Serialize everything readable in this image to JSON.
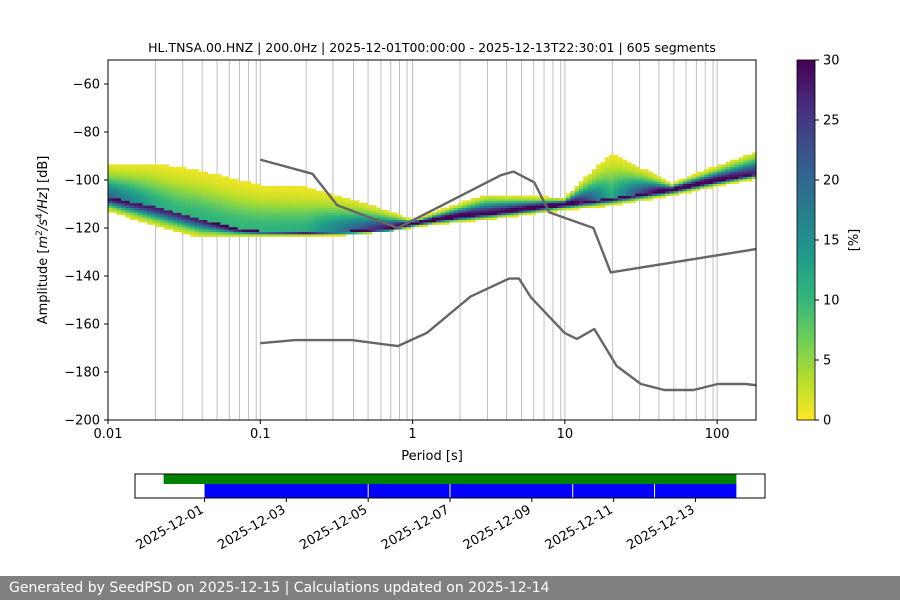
{
  "chart_data": [
    {
      "type": "heatmap",
      "title": "HL.TNSA.00.HNZ | 200.0Hz | 2025-12-01T00:00:00 - 2025-12-13T22:30:01 | 605 segments",
      "xlabel": "Period [s]",
      "ylabel_parts": [
        "Amplitude [",
        "m",
        "2",
        "/",
        "s",
        "4",
        "/",
        "Hz",
        "] [dB]"
      ],
      "xscale": "log",
      "xlim": [
        0.01,
        180
      ],
      "ylim": [
        -200,
        -50
      ],
      "grid": "vertical",
      "xtick_values": [
        0.01,
        0.1,
        1,
        10,
        100
      ],
      "xtick_labels": [
        "0.01",
        "0.1",
        "1",
        "10",
        "100"
      ],
      "ytick_values": [
        -200,
        -180,
        -160,
        -140,
        -120,
        -100,
        -80,
        -60
      ],
      "ytick_labels": [
        "−200",
        "−180",
        "−160",
        "−140",
        "−120",
        "−100",
        "−80",
        "−60"
      ],
      "grid_periods": [
        0.01,
        0.0205,
        0.031,
        0.0415,
        0.052,
        0.0625,
        0.073,
        0.0835,
        0.094,
        0.1,
        0.2,
        0.3,
        0.41,
        0.51,
        0.62,
        0.72,
        0.82,
        0.92,
        1.0,
        2.05,
        3.1,
        4.15,
        5.2,
        6.25,
        7.3,
        8.35,
        9.4,
        10,
        20.5,
        31,
        41.5,
        52,
        62.5,
        73,
        83.5,
        94,
        100
      ],
      "pdf_centerline": [
        [
          0.01,
          -107
        ],
        [
          0.02,
          -111
        ],
        [
          0.04,
          -116
        ],
        [
          0.07,
          -120
        ],
        [
          0.1,
          -121
        ],
        [
          0.2,
          -121.5
        ],
        [
          0.4,
          -121
        ],
        [
          0.7,
          -120
        ],
        [
          1.0,
          -118
        ],
        [
          2.0,
          -115
        ],
        [
          4.0,
          -113
        ],
        [
          10,
          -110
        ],
        [
          20,
          -107.5
        ],
        [
          50,
          -104
        ],
        [
          100,
          -100
        ],
        [
          180,
          -97
        ]
      ],
      "pdf_spread": [
        [
          0.01,
          [
            -95,
            -112
          ]
        ],
        [
          0.02,
          [
            -94,
            -118
          ]
        ],
        [
          0.04,
          [
            -97,
            -123
          ]
        ],
        [
          0.07,
          [
            -101,
            -123
          ]
        ],
        [
          0.1,
          [
            -103,
            -123
          ]
        ],
        [
          0.2,
          [
            -104,
            -123
          ]
        ],
        [
          0.4,
          [
            -109,
            -122
          ]
        ],
        [
          1.0,
          [
            -117,
            -119
          ]
        ],
        [
          3.0,
          [
            -107,
            -116
          ]
        ],
        [
          10,
          [
            -108,
            -112
          ]
        ],
        [
          20,
          [
            -90,
            -110
          ]
        ],
        [
          50,
          [
            -102,
            -106
          ]
        ],
        [
          100,
          [
            -95,
            -102
          ]
        ],
        [
          180,
          [
            -89,
            -99
          ]
        ]
      ],
      "pdf_bumps": [
        [
          3.5,
          -109,
          6
        ],
        [
          20,
          -96,
          4
        ],
        [
          0.04,
          -104,
          4
        ]
      ],
      "nhnm": [
        [
          0.1,
          -91.5
        ],
        [
          0.22,
          -97.4
        ],
        [
          0.32,
          -110.5
        ],
        [
          0.8,
          -120
        ],
        [
          3.8,
          -98
        ],
        [
          4.6,
          -96.5
        ],
        [
          6.3,
          -101
        ],
        [
          7.9,
          -113.5
        ],
        [
          15.4,
          -120
        ],
        [
          20,
          -138.5
        ],
        [
          180,
          -128.8
        ]
      ],
      "nlnm": [
        [
          0.1,
          -168
        ],
        [
          0.17,
          -166.7
        ],
        [
          0.4,
          -166.7
        ],
        [
          0.8,
          -169.2
        ],
        [
          1.24,
          -163.7
        ],
        [
          2.4,
          -148.6
        ],
        [
          4.3,
          -141.1
        ],
        [
          5.0,
          -141.1
        ],
        [
          6.0,
          -149
        ],
        [
          10,
          -163.8
        ],
        [
          12,
          -166.2
        ],
        [
          15.6,
          -162.1
        ],
        [
          21.9,
          -177.5
        ],
        [
          31.6,
          -185
        ],
        [
          45,
          -187.5
        ],
        [
          70,
          -187.5
        ],
        [
          101,
          -185
        ],
        [
          154,
          -185
        ],
        [
          180,
          -185.5
        ]
      ]
    },
    {
      "type": "colorbar",
      "label": "[%]",
      "range": [
        0,
        30
      ],
      "ticks": [
        "0",
        "5",
        "10",
        "15",
        "20",
        "25",
        "30"
      ],
      "colormap": [
        "#fde725",
        "#b5de2b",
        "#6ece58",
        "#35b779",
        "#1f9e89",
        "#26828e",
        "#31688e",
        "#3e4989",
        "#482878",
        "#440154"
      ]
    },
    {
      "type": "timeline",
      "date_labels": [
        "2025-12-01",
        "2025-12-03",
        "2025-12-05",
        "2025-12-07",
        "2025-12-09",
        "2025-12-11",
        "2025-12-13"
      ],
      "xlim_days": [
        -1.7,
        13.7
      ],
      "tick_days": [
        0,
        2,
        4,
        6,
        8,
        10,
        12
      ],
      "available_range_days": [
        -1.0,
        13.0
      ],
      "used_range_days": [
        0.0,
        13.0
      ],
      "available_color": "#008000",
      "used_color": "#0000ff",
      "gap_days": [
        4.0,
        6.0,
        9.0,
        11.0
      ]
    }
  ],
  "footer": {
    "text": "Generated by SeedPSD on 2025-12-15 | Calculations updated on 2025-12-14"
  }
}
